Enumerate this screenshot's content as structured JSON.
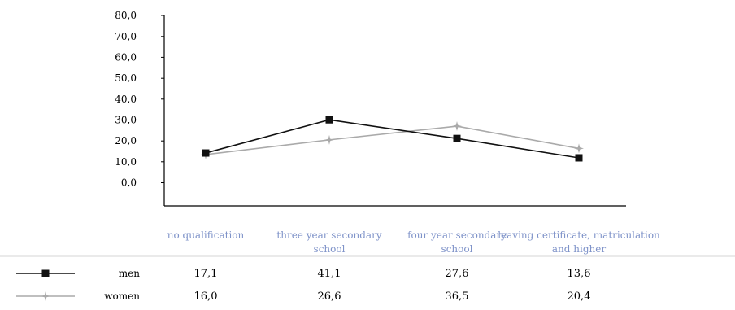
{
  "chart_data": {
    "type": "line",
    "categories": [
      "no qualification",
      "three year secondary school",
      "four year secondary school",
      "leaving certificate, matriculation and higher"
    ],
    "category_lines": [
      [
        "no qualification"
      ],
      [
        "three year secondary",
        "school"
      ],
      [
        "four year secondary",
        "school"
      ],
      [
        "leaving certificate, matriculation",
        "and higher"
      ]
    ],
    "y_ticks": [
      "80,0",
      "70,0",
      "60,0",
      "50,0",
      "40,0",
      "30,0",
      "20,0",
      "10,0",
      "0,0"
    ],
    "series": [
      {
        "name": "men",
        "values": [
          17.1,
          41.1,
          27.6,
          13.6
        ],
        "labels": [
          "17,1",
          "41,1",
          "27,6",
          "13,6"
        ],
        "color": "#111111",
        "marker": "square"
      },
      {
        "name": "women",
        "values": [
          16.0,
          26.6,
          36.5,
          20.4
        ],
        "labels": [
          "16,0",
          "26,6",
          "36,5",
          "20,4"
        ],
        "color": "#aaaaaa",
        "marker": "star"
      }
    ],
    "grid": false,
    "legend": "bottom-left data table",
    "category_label_color": "#7f93c9"
  }
}
